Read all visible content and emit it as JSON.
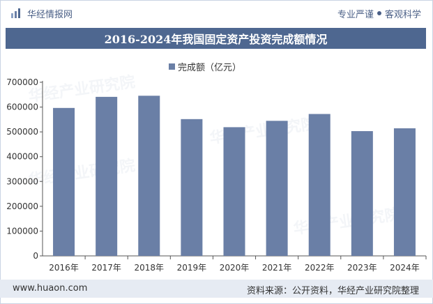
{
  "header": {
    "brand": "华经情报网",
    "slogan_left": "专业严谨",
    "slogan_right": "客观科学"
  },
  "chart_data": {
    "type": "bar",
    "title": "2016-2024年我国固定资产投资完成额情况",
    "legend": [
      "完成额（亿元）"
    ],
    "categories": [
      "2016年",
      "2017年",
      "2018年",
      "2019年",
      "2020年",
      "2021年",
      "2022年",
      "2023年",
      "2024年"
    ],
    "series": [
      {
        "name": "完成额（亿元）",
        "values": [
          596501,
          641238,
          645675,
          551478,
          518907,
          544547,
          572138,
          503036,
          514374
        ]
      }
    ],
    "xlabel": "",
    "ylabel": "",
    "ylim": [
      0,
      700000
    ],
    "yticks": [
      0,
      100000,
      200000,
      300000,
      400000,
      500000,
      600000,
      700000
    ],
    "ytick_labels": [
      "0",
      "100000",
      "200000",
      "300000",
      "400000",
      "500000",
      "600000",
      "700000"
    ],
    "colors": {
      "bar": "#6a7fa6",
      "title_bg": "#4e6790",
      "footer_bg": "#e6ebf3"
    }
  },
  "footer": {
    "site": "www.huaon.com",
    "source": "资料来源：公开资料，华经产业研究院整理"
  }
}
